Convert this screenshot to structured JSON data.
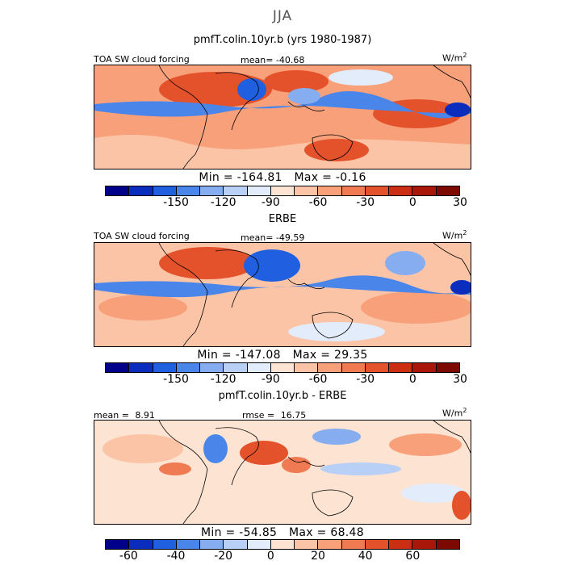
{
  "season": "JJA",
  "panel1": {
    "title": "pmfT.colin.10yr.b (yrs 1980-1987)",
    "left_label": "TOA SW cloud forcing",
    "stat_label": "mean=",
    "stat_value": "-40.68",
    "units": "W/m",
    "units_sup": "2",
    "min_label": "Min =",
    "min_value": "-164.81",
    "max_label": "Max =",
    "max_value": "-0.16"
  },
  "panel2": {
    "title": "ERBE",
    "left_label": "TOA SW cloud forcing",
    "stat_label": "mean=",
    "stat_value": "-49.59",
    "units": "W/m",
    "units_sup": "2",
    "min_label": "Min =",
    "min_value": "-147.08",
    "max_label": "Max =",
    "max_value": "29.35"
  },
  "panel3": {
    "title": "pmfT.colin.10yr.b - ERBE",
    "mean_label": "mean =",
    "mean_value": "8.91",
    "rmse_label": "rmse =",
    "rmse_value": "16.75",
    "units": "W/m",
    "units_sup": "2",
    "min_label": "Min =",
    "min_value": "-54.85",
    "max_label": "Max =",
    "max_value": "68.48"
  },
  "colorbar_abs": {
    "colors": [
      "#00008b",
      "#0a2dbd",
      "#1f5fe0",
      "#4a86ea",
      "#86adf0",
      "#b9d0f6",
      "#e3ecfa",
      "#fde3d2",
      "#fbc4a6",
      "#f7a07a",
      "#f07a52",
      "#e4522c",
      "#cc2e14",
      "#a81707",
      "#7d0a00"
    ],
    "tick_labels": [
      "-150",
      "-120",
      "-90",
      "-60",
      "-30",
      "0",
      "30"
    ],
    "tick_values": [
      -150,
      -120,
      -90,
      -60,
      -30,
      0,
      30
    ],
    "range": [
      -195,
      30
    ]
  },
  "colorbar_diff": {
    "colors": [
      "#00008b",
      "#0a2dbd",
      "#1f5fe0",
      "#4a86ea",
      "#86adf0",
      "#b9d0f6",
      "#e3ecfa",
      "#fde3d2",
      "#fbc4a6",
      "#f7a07a",
      "#f07a52",
      "#e4522c",
      "#cc2e14",
      "#a81707",
      "#7d0a00"
    ],
    "tick_labels": [
      "-60",
      "-40",
      "-20",
      "0",
      "20",
      "40",
      "60"
    ],
    "tick_values": [
      -60,
      -40,
      -20,
      0,
      20,
      40,
      60
    ],
    "range": [
      -70,
      80
    ]
  }
}
